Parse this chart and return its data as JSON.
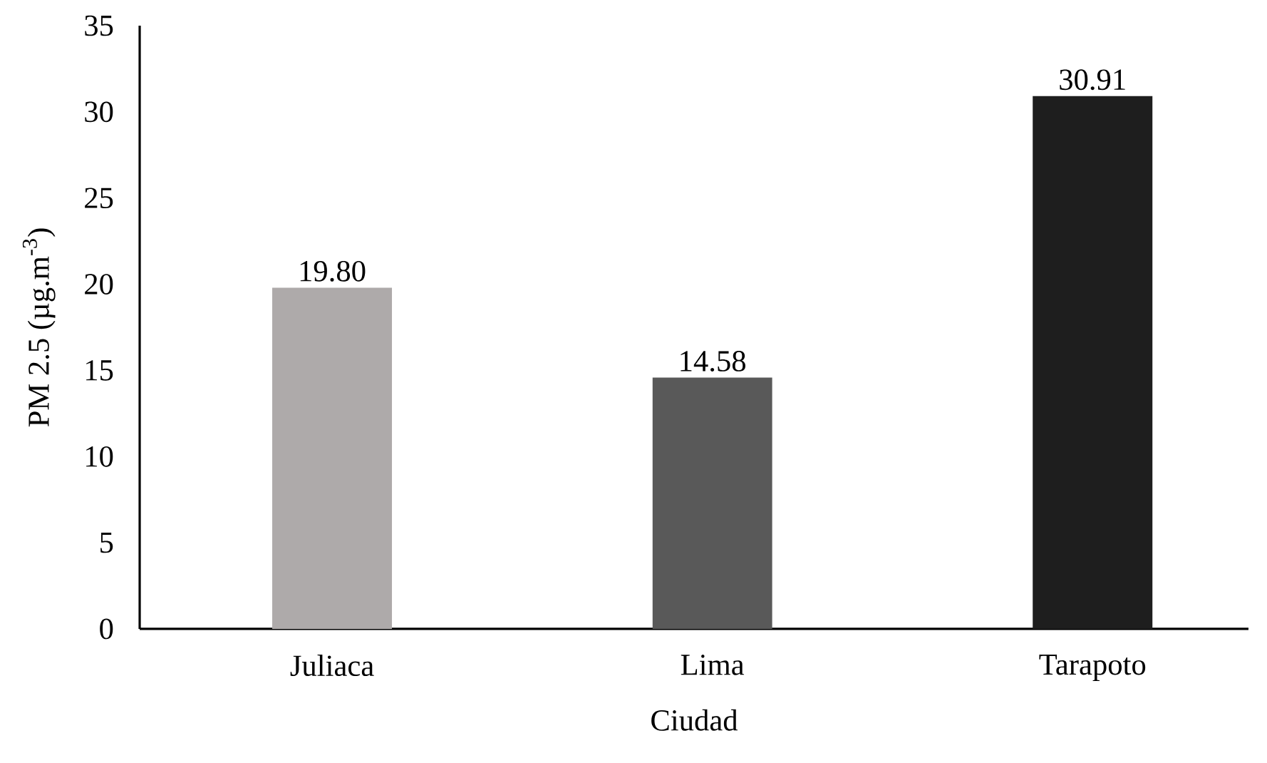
{
  "chart_data": {
    "type": "bar",
    "xlabel": "Ciudad",
    "ylabel": "PM 2.5 (µg.m$^{-3}$)",
    "categories": [
      "Juliaca",
      "Lima",
      "Tarapoto"
    ],
    "values": [
      19.8,
      14.58,
      30.91
    ],
    "value_labels": [
      "19.80",
      "14.58",
      "30.91"
    ],
    "colors": [
      "#aeaaaa",
      "#595959",
      "#1e1e1e"
    ],
    "ylim": [
      0,
      35
    ],
    "yticks": [
      0,
      5,
      10,
      15,
      20,
      25,
      30,
      35
    ]
  }
}
